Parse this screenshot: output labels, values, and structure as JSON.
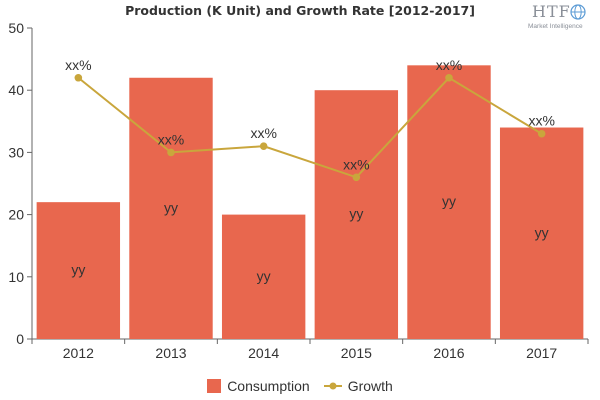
{
  "chart_data": {
    "type": "bar",
    "title": "Production (K Unit) and Growth Rate [2012-2017]",
    "categories": [
      "2012",
      "2013",
      "2014",
      "2015",
      "2016",
      "2017"
    ],
    "series": [
      {
        "name": "Consumption",
        "type": "bar",
        "color": "#e8674e",
        "values": [
          22,
          42,
          20,
          40,
          44,
          34
        ],
        "data_labels": [
          "yy",
          "yy",
          "yy",
          "yy",
          "yy",
          "yy"
        ]
      },
      {
        "name": "Growth",
        "type": "line",
        "color": "#c9a63c",
        "values": [
          42,
          30,
          31,
          26,
          42,
          33
        ],
        "data_labels": [
          "xx%",
          "xx%",
          "xx%",
          "xx%",
          "xx%",
          "xx%"
        ]
      }
    ],
    "ylim": [
      0,
      50
    ],
    "yticks": [
      0,
      10,
      20,
      30,
      40,
      50
    ],
    "grid": false,
    "legend_position": "bottom"
  },
  "logo": {
    "main": "HTF",
    "sub": "Market Intelligence"
  }
}
